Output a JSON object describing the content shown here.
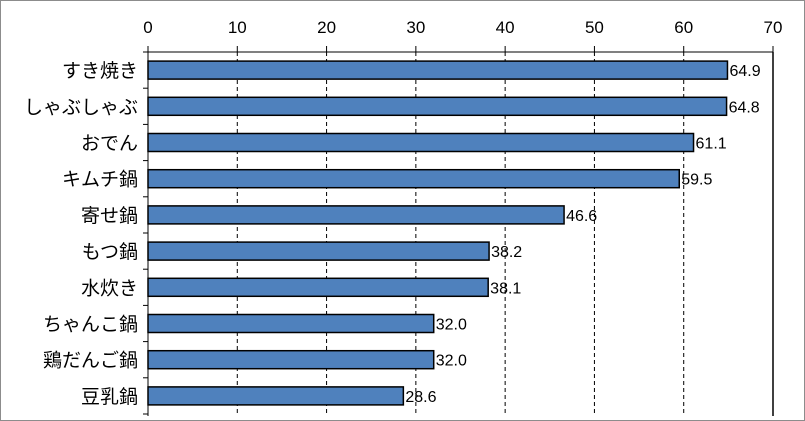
{
  "chart_data": {
    "type": "bar",
    "orientation": "horizontal",
    "categories": [
      "すき焼き",
      "しゃぶしゃぶ",
      "おでん",
      "キムチ鍋",
      "寄せ鍋",
      "もつ鍋",
      "水炊き",
      "ちゃんこ鍋",
      "鶏だんご鍋",
      "豆乳鍋"
    ],
    "values": [
      64.9,
      64.8,
      61.1,
      59.5,
      46.6,
      38.2,
      38.1,
      32.0,
      32.0,
      28.6
    ],
    "data_labels": [
      "64.9",
      "64.8",
      "61.1",
      "59.5",
      "46.6",
      "38.2",
      "38.1",
      "32.0",
      "32.0",
      "28.6"
    ],
    "xlim": [
      0,
      70
    ],
    "ticks": [
      0,
      10,
      20,
      30,
      40,
      50,
      60,
      70
    ],
    "tick_labels": [
      "0",
      "10",
      "20",
      "30",
      "40",
      "50",
      "60",
      "70"
    ],
    "x_axis_position": "top",
    "grid": "vertical dashed",
    "bar_color": "#4f81bd",
    "bar_edge_color": "#000000",
    "title": "",
    "xlabel": "",
    "ylabel": ""
  }
}
